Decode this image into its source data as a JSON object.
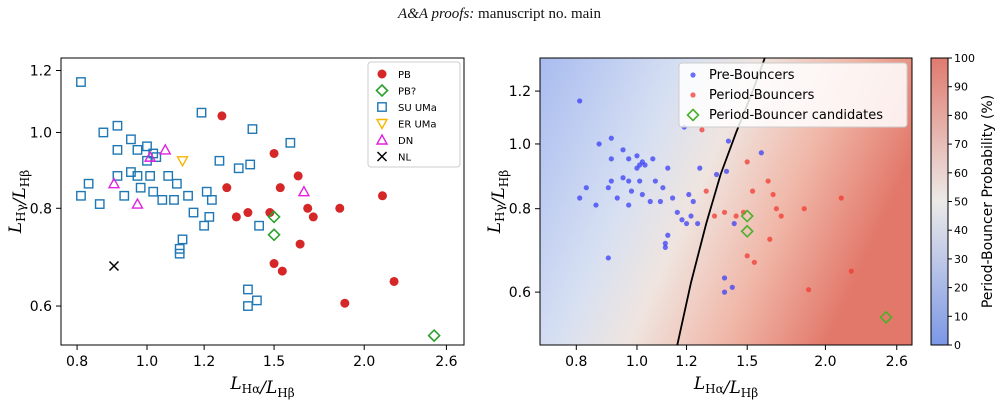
{
  "header": {
    "italic": "A&A proofs:",
    "rest": "manuscript no. main"
  },
  "chart_data": [
    {
      "type": "scatter",
      "xlabel": "LHα/LHβ",
      "ylabel": "LHγ/LHβ",
      "xscale": "log",
      "yscale": "log",
      "xlim": [
        0.76,
        2.75
      ],
      "ylim": [
        0.535,
        1.245
      ],
      "xticks": [
        "0.8",
        "1.0",
        "1.2",
        "1.5",
        "2.0",
        "2.6"
      ],
      "yticks": [
        "0.6",
        "0.8",
        "1.0",
        "1.2"
      ],
      "legend_position": "top-right",
      "series": [
        {
          "name": "PB",
          "marker": "filled-circle",
          "color": "#d62728",
          "points": [
            [
              1.27,
              1.05
            ],
            [
              1.5,
              0.94
            ],
            [
              1.29,
              0.85
            ],
            [
              1.33,
              0.78
            ],
            [
              1.38,
              0.79
            ],
            [
              1.48,
              0.79
            ],
            [
              1.53,
              0.85
            ],
            [
              1.62,
              0.88
            ],
            [
              1.67,
              0.8
            ],
            [
              1.7,
              0.78
            ],
            [
              1.85,
              0.8
            ],
            [
              2.12,
              0.83
            ],
            [
              1.63,
              0.72
            ],
            [
              1.5,
              0.68
            ],
            [
              1.54,
              0.665
            ],
            [
              2.2,
              0.645
            ],
            [
              1.88,
              0.605
            ]
          ]
        },
        {
          "name": "PB?",
          "marker": "open-diamond",
          "color": "#2ca02c",
          "points": [
            [
              1.5,
              0.78
            ],
            [
              1.5,
              0.74
            ],
            [
              2.5,
              0.55
            ]
          ]
        },
        {
          "name": "SU UMa",
          "marker": "open-square",
          "color": "#1f77b4",
          "points": [
            [
              0.81,
              1.16
            ],
            [
              0.87,
              1.0
            ],
            [
              0.91,
              1.02
            ],
            [
              0.95,
              0.98
            ],
            [
              0.91,
              0.95
            ],
            [
              0.97,
              0.95
            ],
            [
              1.0,
              0.96
            ],
            [
              1.02,
              0.94
            ],
            [
              1.03,
              0.93
            ],
            [
              1.0,
              0.92
            ],
            [
              0.95,
              0.89
            ],
            [
              0.91,
              0.88
            ],
            [
              0.97,
              0.88
            ],
            [
              1.01,
              0.88
            ],
            [
              1.07,
              0.88
            ],
            [
              1.1,
              0.86
            ],
            [
              0.83,
              0.86
            ],
            [
              0.81,
              0.83
            ],
            [
              0.86,
              0.81
            ],
            [
              0.93,
              0.83
            ],
            [
              0.98,
              0.85
            ],
            [
              1.02,
              0.84
            ],
            [
              1.05,
              0.82
            ],
            [
              1.09,
              0.82
            ],
            [
              1.14,
              0.83
            ],
            [
              1.16,
              0.79
            ],
            [
              1.21,
              0.84
            ],
            [
              1.23,
              0.82
            ],
            [
              1.22,
              0.78
            ],
            [
              1.2,
              0.76
            ],
            [
              1.12,
              0.73
            ],
            [
              1.11,
              0.71
            ],
            [
              1.11,
              0.7
            ],
            [
              1.26,
              0.92
            ],
            [
              1.34,
              0.9
            ],
            [
              1.39,
              0.91
            ],
            [
              1.4,
              1.01
            ],
            [
              1.19,
              1.06
            ],
            [
              1.58,
              0.97
            ],
            [
              1.43,
              0.76
            ],
            [
              1.38,
              0.63
            ],
            [
              1.38,
              0.6
            ],
            [
              1.42,
              0.61
            ]
          ]
        },
        {
          "name": "ER UMa",
          "marker": "open-triangle-down",
          "color": "#f7b500",
          "points": [
            [
              1.12,
              0.92
            ]
          ]
        },
        {
          "name": "DN",
          "marker": "open-triangle-up",
          "color": "#e020e0",
          "points": [
            [
              0.9,
              0.86
            ],
            [
              0.97,
              0.81
            ],
            [
              1.01,
              0.93
            ],
            [
              1.06,
              0.95
            ],
            [
              1.65,
              0.84
            ]
          ]
        },
        {
          "name": "NL",
          "marker": "x",
          "color": "#000000",
          "points": [
            [
              0.9,
              0.675
            ]
          ]
        }
      ]
    },
    {
      "type": "scatter",
      "xlabel": "LHα/LHβ",
      "ylabel": "LHγ/LHβ",
      "xscale": "log",
      "yscale": "log",
      "xlim": [
        0.7,
        2.75
      ],
      "ylim": [
        0.5,
        1.345
      ],
      "xticks": [
        "0.8",
        "1.0",
        "1.2",
        "1.5",
        "2.0",
        "2.6"
      ],
      "yticks": [
        "0.6",
        "0.8",
        "1.0",
        "1.2"
      ],
      "legend_position": "top-right",
      "background": "probability gradient (blue to red) with decision boundary curve",
      "colorbar": {
        "label": "Period-Bouncer Probability (%)",
        "ticks": [
          "0",
          "10",
          "20",
          "30",
          "40",
          "50",
          "60",
          "70",
          "80",
          "90",
          "100"
        ],
        "low_color": "#7b97e6",
        "mid_color": "#eceae8",
        "high_color": "#e07a6e"
      },
      "series": [
        {
          "name": "Pre-Bouncers",
          "marker": "filled-circle",
          "color": "#3a3ff5",
          "points": [
            [
              0.81,
              1.16
            ],
            [
              0.87,
              1.0
            ],
            [
              0.91,
              1.02
            ],
            [
              0.95,
              0.98
            ],
            [
              0.91,
              0.95
            ],
            [
              0.97,
              0.95
            ],
            [
              1.0,
              0.96
            ],
            [
              1.02,
              0.94
            ],
            [
              1.03,
              0.93
            ],
            [
              1.0,
              0.92
            ],
            [
              0.95,
              0.89
            ],
            [
              0.91,
              0.88
            ],
            [
              0.97,
              0.88
            ],
            [
              1.01,
              0.88
            ],
            [
              1.07,
              0.88
            ],
            [
              1.1,
              0.86
            ],
            [
              0.83,
              0.86
            ],
            [
              0.81,
              0.83
            ],
            [
              0.86,
              0.81
            ],
            [
              0.93,
              0.83
            ],
            [
              0.98,
              0.85
            ],
            [
              1.02,
              0.84
            ],
            [
              1.05,
              0.82
            ],
            [
              1.09,
              0.82
            ],
            [
              1.14,
              0.83
            ],
            [
              1.16,
              0.79
            ],
            [
              1.21,
              0.84
            ],
            [
              1.23,
              0.82
            ],
            [
              1.22,
              0.78
            ],
            [
              1.2,
              0.76
            ],
            [
              1.12,
              0.73
            ],
            [
              1.11,
              0.71
            ],
            [
              1.11,
              0.7
            ],
            [
              1.26,
              0.92
            ],
            [
              1.34,
              0.9
            ],
            [
              1.39,
              0.91
            ],
            [
              1.4,
              1.01
            ],
            [
              1.19,
              1.06
            ],
            [
              1.58,
              0.97
            ],
            [
              1.43,
              0.76
            ],
            [
              1.38,
              0.63
            ],
            [
              1.38,
              0.6
            ],
            [
              1.42,
              0.61
            ],
            [
              0.9,
              0.86
            ],
            [
              0.97,
              0.81
            ],
            [
              1.01,
              0.93
            ],
            [
              1.06,
              0.95
            ],
            [
              1.12,
              0.92
            ],
            [
              0.9,
              0.675
            ],
            [
              1.18,
              0.77
            ],
            [
              1.25,
              0.76
            ]
          ]
        },
        {
          "name": "Period-Bouncers",
          "marker": "filled-circle",
          "color": "#f23a30",
          "points": [
            [
              1.27,
              1.05
            ],
            [
              1.5,
              0.94
            ],
            [
              1.29,
              0.85
            ],
            [
              1.33,
              0.78
            ],
            [
              1.38,
              0.79
            ],
            [
              1.48,
              0.79
            ],
            [
              1.53,
              0.85
            ],
            [
              1.62,
              0.88
            ],
            [
              1.67,
              0.8
            ],
            [
              1.7,
              0.78
            ],
            [
              1.85,
              0.8
            ],
            [
              2.12,
              0.83
            ],
            [
              1.63,
              0.72
            ],
            [
              1.5,
              0.68
            ],
            [
              1.54,
              0.665
            ],
            [
              2.2,
              0.645
            ],
            [
              1.88,
              0.605
            ],
            [
              1.65,
              0.84
            ],
            [
              1.44,
              0.78
            ]
          ]
        },
        {
          "name": "Period-Bouncer candidates",
          "marker": "open-diamond",
          "color": "#4caf2c",
          "points": [
            [
              1.5,
              0.78
            ],
            [
              1.5,
              0.74
            ],
            [
              2.5,
              0.55
            ]
          ]
        }
      ],
      "boundary": [
        [
          1.16,
          0.5
        ],
        [
          1.22,
          0.62
        ],
        [
          1.29,
          0.76
        ],
        [
          1.36,
          0.9
        ],
        [
          1.44,
          1.04
        ],
        [
          1.52,
          1.18
        ],
        [
          1.6,
          1.345
        ]
      ]
    }
  ]
}
